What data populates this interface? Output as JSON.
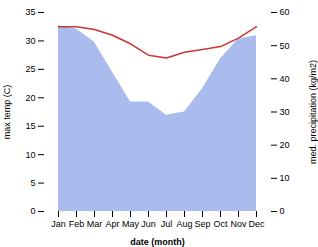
{
  "chart_data": {
    "type": "line",
    "x_label": "date (month)",
    "y_label": "max temp (C)",
    "y2_label": "med. precipitation (kg/m2)",
    "categories": [
      "Jan",
      "Feb",
      "Mar",
      "Apr",
      "May",
      "Jun",
      "Jul",
      "Aug",
      "Sep",
      "Oct",
      "Nov",
      "Dec"
    ],
    "series": [
      {
        "type": "area",
        "axis": "y2",
        "color": "#aabbee",
        "values": [
          56.0,
          55.0,
          51.0,
          42.0,
          33.0,
          33.0,
          29.0,
          30.0,
          37.0,
          46.0,
          52.0,
          53.0
        ]
      },
      {
        "type": "line",
        "color": "#cc3333",
        "values": [
          32.5,
          32.5,
          32.0,
          31.0,
          29.5,
          27.5,
          27.0,
          28.0,
          28.5,
          29.0,
          30.5,
          32.5
        ]
      }
    ],
    "ylim": [
      0,
      35
    ],
    "yticks": [
      0,
      5,
      10,
      15,
      20,
      25,
      30,
      35
    ],
    "y2lim": [
      0,
      60
    ],
    "y2ticks": [
      0,
      10,
      20,
      30,
      40,
      50,
      60
    ],
    "grid": false
  }
}
